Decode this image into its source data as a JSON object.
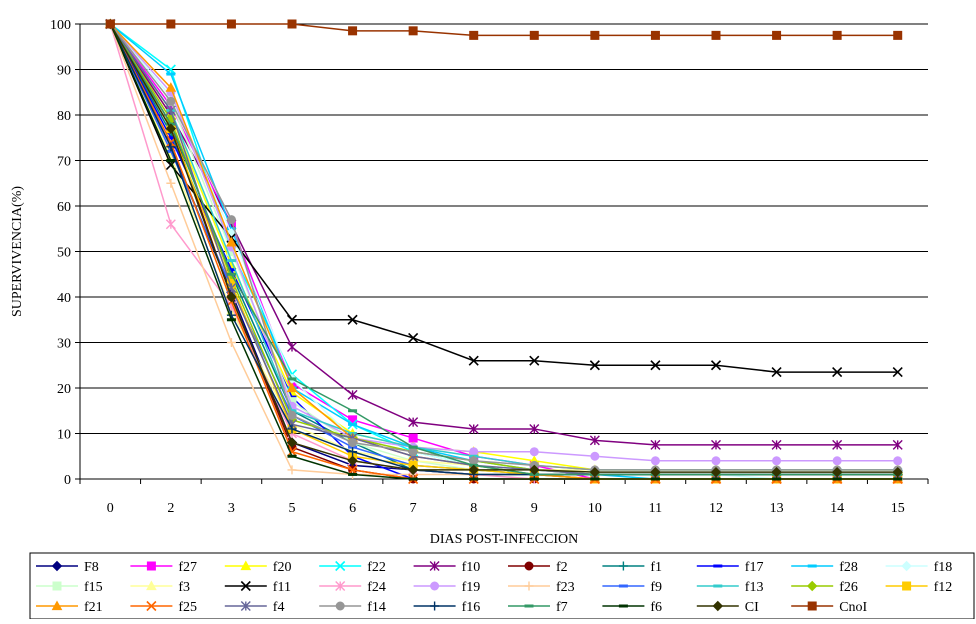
{
  "chart_data": {
    "type": "line",
    "title": "",
    "xlabel": "DIAS POST-INFECCION",
    "ylabel": "SUPERVIVENCIA(%)",
    "x": [
      "0",
      "2",
      "3",
      "5",
      "6",
      "7",
      "8",
      "9",
      "10",
      "11",
      "12",
      "13",
      "14",
      "15"
    ],
    "ylim": [
      0,
      100
    ],
    "yticks": [
      0,
      10,
      20,
      30,
      40,
      50,
      60,
      70,
      80,
      90,
      100
    ],
    "grid": "horizontal",
    "legend_position": "bottom",
    "series": [
      {
        "name": "F8",
        "color": "#000080",
        "marker": "diamond",
        "values": [
          100,
          73,
          41,
          8,
          3,
          2,
          1,
          1,
          1,
          1,
          1,
          1,
          1,
          1
        ]
      },
      {
        "name": "f27",
        "color": "#ff00ff",
        "marker": "square",
        "values": [
          100,
          82,
          56,
          21,
          13,
          9,
          5,
          3,
          0,
          0,
          0,
          0,
          0,
          0
        ]
      },
      {
        "name": "f20",
        "color": "#ffff00",
        "marker": "triangle",
        "values": [
          100,
          80,
          47,
          19,
          10,
          7,
          6,
          4,
          2,
          2,
          2,
          2,
          2,
          2
        ]
      },
      {
        "name": "f22",
        "color": "#00ffff",
        "marker": "x",
        "values": [
          100,
          90,
          50,
          23,
          12,
          6,
          3,
          1,
          1,
          1,
          1,
          1,
          1,
          1
        ]
      },
      {
        "name": "f10",
        "color": "#800080",
        "marker": "star",
        "values": [
          100,
          80,
          56,
          29,
          18.5,
          12.5,
          11,
          11,
          8.5,
          7.5,
          7.5,
          7.5,
          7.5,
          7.5
        ]
      },
      {
        "name": "f2",
        "color": "#800000",
        "marker": "circle",
        "values": [
          100,
          78,
          40,
          7,
          2,
          0,
          0,
          0,
          0,
          0,
          0,
          0,
          0,
          0
        ]
      },
      {
        "name": "f1",
        "color": "#008080",
        "marker": "plus",
        "values": [
          100,
          76,
          45,
          15,
          8,
          2,
          1,
          1,
          1,
          1,
          1,
          1,
          1,
          1
        ]
      },
      {
        "name": "f17",
        "color": "#0000ff",
        "marker": "dash",
        "values": [
          100,
          75,
          46,
          18,
          5,
          0,
          0,
          0,
          0,
          0,
          0,
          0,
          0,
          0
        ]
      },
      {
        "name": "f28",
        "color": "#00ccff",
        "marker": "dash",
        "values": [
          100,
          89,
          55,
          20,
          12,
          7,
          4,
          2,
          1,
          0,
          0,
          0,
          0,
          0
        ]
      },
      {
        "name": "f18",
        "color": "#ccffff",
        "marker": "diamond",
        "values": [
          100,
          84,
          54,
          22,
          9,
          6,
          3,
          2,
          1,
          1,
          1,
          0,
          0,
          0
        ]
      },
      {
        "name": "f15",
        "color": "#ccffcc",
        "marker": "square",
        "values": [
          100,
          83,
          50,
          17,
          8,
          4,
          2,
          1,
          0,
          0,
          0,
          0,
          0,
          0
        ]
      },
      {
        "name": "f3",
        "color": "#ffff99",
        "marker": "triangle",
        "values": [
          100,
          71,
          37,
          12,
          6,
          4,
          3,
          2,
          2,
          2,
          2,
          2,
          2,
          2
        ]
      },
      {
        "name": "f11",
        "color": "#000000",
        "marker": "x",
        "values": [
          100,
          69,
          53,
          35,
          35,
          31,
          26,
          26,
          25,
          25,
          25,
          23.5,
          23.5,
          23.5
        ]
      },
      {
        "name": "f24",
        "color": "#ff99cc",
        "marker": "star",
        "values": [
          100,
          56,
          38,
          10,
          4,
          2,
          1,
          0,
          0,
          0,
          0,
          0,
          0,
          0
        ]
      },
      {
        "name": "f19",
        "color": "#cc99ff",
        "marker": "circle",
        "values": [
          100,
          85,
          51,
          16,
          9,
          7,
          6,
          6,
          5,
          4,
          4,
          4,
          4,
          4
        ]
      },
      {
        "name": "f23",
        "color": "#ffcc99",
        "marker": "plus",
        "values": [
          100,
          65,
          30,
          2,
          1,
          1,
          1,
          1,
          1,
          1,
          1,
          1,
          1,
          1
        ]
      },
      {
        "name": "f9",
        "color": "#3366ff",
        "marker": "dash",
        "values": [
          100,
          72,
          42,
          14,
          7,
          3,
          2,
          1,
          0,
          0,
          0,
          0,
          0,
          0
        ]
      },
      {
        "name": "f13",
        "color": "#33cccc",
        "marker": "dash",
        "values": [
          100,
          81,
          48,
          15,
          10,
          7,
          5,
          3,
          2,
          2,
          2,
          2,
          2,
          2
        ]
      },
      {
        "name": "f26",
        "color": "#99cc00",
        "marker": "diamond",
        "values": [
          100,
          79,
          44,
          13,
          9,
          6,
          4,
          2,
          1,
          1,
          1,
          1,
          1,
          1
        ]
      },
      {
        "name": "f12",
        "color": "#ffcc00",
        "marker": "square",
        "values": [
          100,
          77,
          43,
          11,
          5,
          3,
          2,
          1,
          0,
          0,
          0,
          0,
          0,
          0
        ]
      },
      {
        "name": "f21",
        "color": "#ff9900",
        "marker": "triangle",
        "values": [
          100,
          86,
          52,
          20,
          9,
          5,
          3,
          1,
          0,
          0,
          0,
          0,
          0,
          0
        ]
      },
      {
        "name": "f25",
        "color": "#ff6600",
        "marker": "x",
        "values": [
          100,
          74,
          39,
          6,
          2,
          0,
          0,
          0,
          0,
          0,
          0,
          0,
          0,
          0
        ]
      },
      {
        "name": "f4",
        "color": "#666699",
        "marker": "star",
        "values": [
          100,
          81,
          42,
          12,
          9,
          5,
          3,
          2,
          1,
          1,
          1,
          1,
          1,
          1
        ]
      },
      {
        "name": "f14",
        "color": "#969696",
        "marker": "circle",
        "values": [
          100,
          83,
          57,
          14,
          8,
          6,
          4,
          3,
          2,
          2,
          2,
          2,
          2,
          2
        ]
      },
      {
        "name": "f16",
        "color": "#003366",
        "marker": "plus",
        "values": [
          100,
          73,
          36,
          11,
          6,
          2,
          1,
          1,
          1,
          1,
          1,
          1,
          1,
          1
        ]
      },
      {
        "name": "f7",
        "color": "#339966",
        "marker": "dash",
        "values": [
          100,
          78,
          45,
          22,
          15,
          7,
          3,
          1,
          1,
          1,
          1,
          1,
          1,
          1
        ]
      },
      {
        "name": "f6",
        "color": "#003300",
        "marker": "dash",
        "values": [
          100,
          70,
          35,
          5,
          1,
          0,
          0,
          0,
          0,
          0,
          0,
          0,
          0,
          0
        ]
      },
      {
        "name": "CI",
        "color": "#333300",
        "marker": "diamond",
        "values": [
          100,
          77,
          40,
          8,
          4,
          2,
          2,
          2,
          1.5,
          1.5,
          1.5,
          1.5,
          1.5,
          1.5
        ]
      },
      {
        "name": "CnoI",
        "color": "#993300",
        "marker": "square",
        "values": [
          100,
          100,
          100,
          100,
          98.5,
          98.5,
          97.5,
          97.5,
          97.5,
          97.5,
          97.5,
          97.5,
          97.5,
          97.5
        ]
      }
    ]
  }
}
